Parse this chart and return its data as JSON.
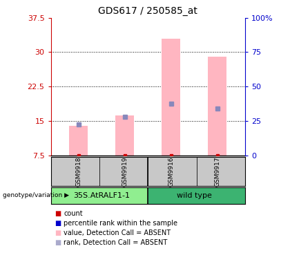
{
  "title": "GDS617 / 250585_at",
  "samples": [
    "GSM9918",
    "GSM9919",
    "GSM9916",
    "GSM9917"
  ],
  "groups": [
    {
      "label": "35S.AtRALF1-1",
      "indices": [
        0,
        1
      ],
      "color": "#90ee90"
    },
    {
      "label": "wild type",
      "indices": [
        2,
        3
      ],
      "color": "#3cb371"
    }
  ],
  "pink_bar_values": [
    14.0,
    16.3,
    33.0,
    29.0
  ],
  "blue_marker_values": [
    14.3,
    15.9,
    18.8,
    17.8
  ],
  "red_dot_values": [
    7.5,
    7.5,
    7.5,
    7.5
  ],
  "ylim_left": [
    7.5,
    37.5
  ],
  "ylim_right": [
    0,
    100
  ],
  "yticks_left": [
    7.5,
    15.0,
    22.5,
    30.0,
    37.5
  ],
  "yticks_right": [
    0,
    25,
    50,
    75,
    100
  ],
  "ytick_labels_left": [
    "7.5",
    "15",
    "22.5",
    "30",
    "37.5"
  ],
  "ytick_labels_right": [
    "0",
    "25",
    "50",
    "75",
    "100%"
  ],
  "hlines": [
    15.0,
    22.5,
    30.0
  ],
  "pink_color": "#ffb6c1",
  "blue_color": "#8888bb",
  "red_color": "#cc0000",
  "left_axis_color": "#cc0000",
  "right_axis_color": "#0000cc",
  "background_color": "#ffffff",
  "label_area_color": "#c8c8c8",
  "legend_colors": [
    "#cc0000",
    "#0000cc",
    "#ffb6c1",
    "#aaaacc"
  ],
  "legend_labels": [
    "count",
    "percentile rank within the sample",
    "value, Detection Call = ABSENT",
    "rank, Detection Call = ABSENT"
  ]
}
